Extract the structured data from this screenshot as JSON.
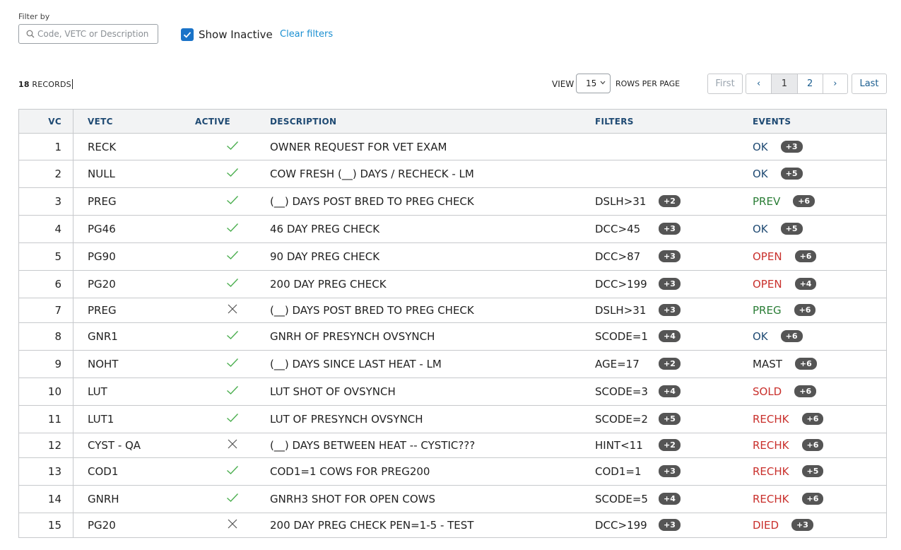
{
  "filter": {
    "label": "Filter by",
    "placeholder": "Code, VETC or Description",
    "value": "",
    "show_inactive_label": "Show Inactive",
    "show_inactive_checked": true,
    "clear_filters_label": "Clear filters"
  },
  "summary": {
    "count": "18",
    "records_label": "RECORDS"
  },
  "pager": {
    "view_label": "VIEW",
    "rows_per_page": "15",
    "rows_label": "ROWS PER PAGE",
    "first": "First",
    "prev": "‹",
    "page1": "1",
    "page2": "2",
    "next": "›",
    "last": "Last",
    "current_page": 1
  },
  "columns": [
    "VC",
    "VETC",
    "ACTIVE",
    "DESCRIPTION",
    "FILTERS",
    "EVENTS"
  ],
  "colors": {
    "accent": "#1a73c8",
    "link": "#1a8fd1",
    "header_text": "#1f4a73",
    "ok": "#1f4a73",
    "green": "#2a7d36",
    "red": "#c9302c"
  },
  "rows": [
    {
      "vc": "1",
      "vetc": "RECK",
      "active": true,
      "description": "OWNER REQUEST FOR VET EXAM",
      "filter": "",
      "filter_more": "",
      "event": "OK",
      "event_color": "ok",
      "event_more": "+3"
    },
    {
      "vc": "2",
      "vetc": "NULL",
      "active": true,
      "description": "COW FRESH (__) DAYS / RECHECK - LM",
      "filter": "",
      "filter_more": "",
      "event": "OK",
      "event_color": "ok",
      "event_more": "+5"
    },
    {
      "vc": "3",
      "vetc": "PREG",
      "active": true,
      "description": "(__) DAYS POST BRED TO PREG CHECK",
      "filter": "DSLH>31",
      "filter_more": "+2",
      "event": "PREV",
      "event_color": "green",
      "event_more": "+6"
    },
    {
      "vc": "4",
      "vetc": "PG46",
      "active": true,
      "description": "46 DAY PREG CHECK",
      "filter": "DCC>45",
      "filter_more": "+3",
      "event": "OK",
      "event_color": "ok",
      "event_more": "+5"
    },
    {
      "vc": "5",
      "vetc": "PG90",
      "active": true,
      "description": "90 DAY PREG CHECK",
      "filter": "DCC>87",
      "filter_more": "+3",
      "event": "OPEN",
      "event_color": "red",
      "event_more": "+6"
    },
    {
      "vc": "6",
      "vetc": "PG20",
      "active": true,
      "description": "200 DAY PREG CHECK",
      "filter": "DCC>199",
      "filter_more": "+3",
      "event": "OPEN",
      "event_color": "red",
      "event_more": "+4"
    },
    {
      "vc": "7",
      "vetc": "PREG",
      "active": false,
      "description": "(__) DAYS POST BRED TO PREG CHECK",
      "filter": "DSLH>31",
      "filter_more": "+3",
      "event": "PREG",
      "event_color": "green",
      "event_more": "+6"
    },
    {
      "vc": "8",
      "vetc": "GNR1",
      "active": true,
      "description": "GNRH OF PRESYNCH OVSYNCH",
      "filter": "SCODE=1",
      "filter_more": "+4",
      "event": "OK",
      "event_color": "ok",
      "event_more": "+6"
    },
    {
      "vc": "9",
      "vetc": "NOHT",
      "active": true,
      "description": "(__) DAYS SINCE LAST HEAT - LM",
      "filter": "AGE=17",
      "filter_more": "+2",
      "event": "MAST",
      "event_color": "dark",
      "event_more": "+6"
    },
    {
      "vc": "10",
      "vetc": "LUT",
      "active": true,
      "description": "LUT SHOT OF OVSYNCH",
      "filter": "SCODE=3",
      "filter_more": "+4",
      "event": "SOLD",
      "event_color": "red",
      "event_more": "+6"
    },
    {
      "vc": "11",
      "vetc": "LUT1",
      "active": true,
      "description": "LUT OF PRESYNCH OVSYNCH",
      "filter": "SCODE=2",
      "filter_more": "+5",
      "event": "RECHK",
      "event_color": "red",
      "event_more": "+6"
    },
    {
      "vc": "12",
      "vetc": "CYST - QA",
      "active": false,
      "description": "(__) DAYS BETWEEN HEAT -- CYSTIC???",
      "filter": "HINT<11",
      "filter_more": "+2",
      "event": "RECHK",
      "event_color": "red",
      "event_more": "+6"
    },
    {
      "vc": "13",
      "vetc": "COD1",
      "active": true,
      "description": "COD1=1 COWS FOR PREG200",
      "filter": "COD1=1",
      "filter_more": "+3",
      "event": "RECHK",
      "event_color": "red",
      "event_more": "+5"
    },
    {
      "vc": "14",
      "vetc": "GNRH",
      "active": true,
      "description": "GNRH3 SHOT FOR OPEN COWS",
      "filter": "SCODE=5",
      "filter_more": "+4",
      "event": "RECHK",
      "event_color": "red",
      "event_more": "+6"
    },
    {
      "vc": "15",
      "vetc": "PG20",
      "active": false,
      "description": "200 DAY PREG CHECK PEN=1-5 - TEST",
      "filter": "DCC>199",
      "filter_more": "+3",
      "event": "DIED",
      "event_color": "red",
      "event_more": "+3"
    }
  ]
}
